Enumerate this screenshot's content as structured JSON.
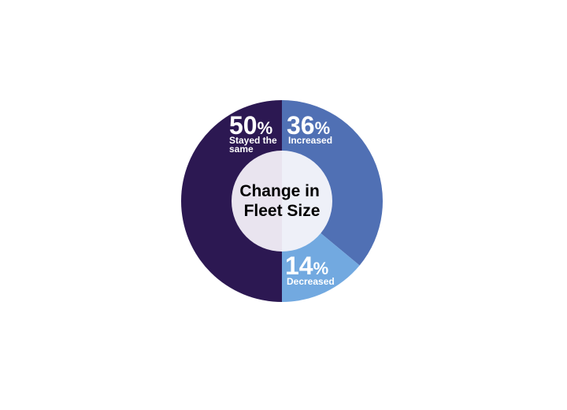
{
  "chart_data": {
    "type": "pie",
    "variant": "donut",
    "title": "Change in Fleet Size",
    "title_lines": [
      "Change in",
      "Fleet Size"
    ],
    "title_color": "#d9552a",
    "slices": [
      {
        "label": "Increased",
        "label_lines": [
          "Increased"
        ],
        "value": 36,
        "display": "36",
        "color": "#5070b4"
      },
      {
        "label": "Decreased",
        "label_lines": [
          "Decreased"
        ],
        "value": 14,
        "display": "14",
        "color": "#72a9e0"
      },
      {
        "label": "Stayed the same",
        "label_lines": [
          "Stayed the",
          "same"
        ],
        "value": 50,
        "display": "50",
        "color": "#2c1852"
      }
    ],
    "percent_sign": "%",
    "start": "top",
    "direction": "clockwise"
  }
}
